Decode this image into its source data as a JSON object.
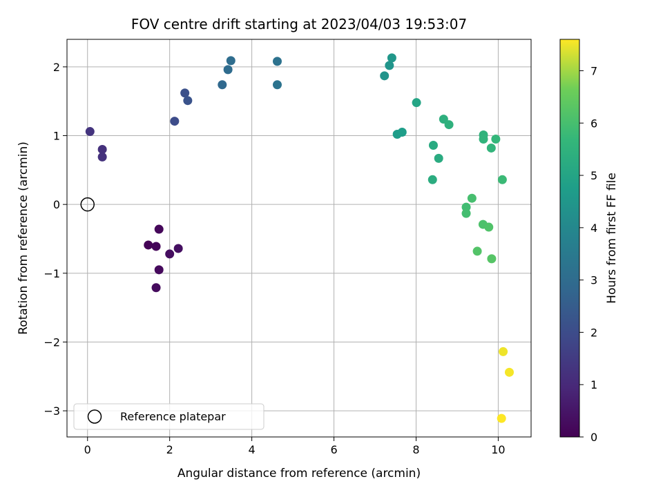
{
  "chart_data": {
    "type": "scatter",
    "title": "FOV centre drift starting at 2023/04/03 19:53:07",
    "xlabel": "Angular distance from reference (arcmin)",
    "ylabel": "Rotation from reference (arcmin)",
    "xlim": [
      -0.5,
      10.8
    ],
    "ylim": [
      -3.38,
      2.4
    ],
    "xticks": [
      0,
      2,
      4,
      6,
      8,
      10
    ],
    "xtick_labels": [
      "0",
      "2",
      "4",
      "6",
      "8",
      "10"
    ],
    "yticks": [
      -3,
      -2,
      -1,
      0,
      1,
      2
    ],
    "ytick_labels": [
      "−3",
      "−2",
      "−1",
      "0",
      "1",
      "2"
    ],
    "grid": true,
    "colormap": "viridis",
    "colorbar": {
      "label": "Hours from first FF file",
      "range": [
        0,
        7.6
      ],
      "ticks": [
        0,
        1,
        2,
        3,
        4,
        5,
        6,
        7
      ],
      "tick_labels": [
        "0",
        "1",
        "2",
        "3",
        "4",
        "5",
        "6",
        "7"
      ]
    },
    "legend": {
      "placement": "lower-left",
      "entries": [
        "Reference platepar"
      ]
    },
    "reference_point": {
      "x": 0,
      "y": 0,
      "label": "Reference platepar"
    },
    "points": [
      {
        "x": 1.48,
        "y": -0.59,
        "hours": 0.05
      },
      {
        "x": 1.67,
        "y": -0.61,
        "hours": 0.1
      },
      {
        "x": 1.74,
        "y": -0.36,
        "hours": 0.15
      },
      {
        "x": 1.74,
        "y": -0.95,
        "hours": 0.2
      },
      {
        "x": 1.67,
        "y": -1.21,
        "hours": 0.25
      },
      {
        "x": 2.0,
        "y": -0.72,
        "hours": 0.3
      },
      {
        "x": 2.21,
        "y": -0.64,
        "hours": 0.35
      },
      {
        "x": 0.36,
        "y": 0.8,
        "hours": 1.2
      },
      {
        "x": 0.36,
        "y": 0.69,
        "hours": 1.25
      },
      {
        "x": 0.06,
        "y": 1.06,
        "hours": 1.3
      },
      {
        "x": 2.12,
        "y": 1.21,
        "hours": 2.0
      },
      {
        "x": 2.37,
        "y": 1.62,
        "hours": 2.1
      },
      {
        "x": 2.44,
        "y": 1.51,
        "hours": 2.2
      },
      {
        "x": 3.28,
        "y": 1.74,
        "hours": 2.9
      },
      {
        "x": 3.42,
        "y": 1.96,
        "hours": 3.0
      },
      {
        "x": 3.49,
        "y": 2.09,
        "hours": 3.05
      },
      {
        "x": 4.62,
        "y": 2.08,
        "hours": 3.2
      },
      {
        "x": 4.62,
        "y": 1.74,
        "hours": 3.25
      },
      {
        "x": 7.23,
        "y": 1.87,
        "hours": 4.4
      },
      {
        "x": 7.35,
        "y": 2.02,
        "hours": 4.45
      },
      {
        "x": 7.41,
        "y": 2.13,
        "hours": 4.5
      },
      {
        "x": 7.54,
        "y": 1.02,
        "hours": 4.7
      },
      {
        "x": 7.66,
        "y": 1.05,
        "hours": 4.75
      },
      {
        "x": 8.01,
        "y": 1.48,
        "hours": 5.0
      },
      {
        "x": 8.42,
        "y": 0.86,
        "hours": 5.2
      },
      {
        "x": 8.55,
        "y": 0.67,
        "hours": 5.25
      },
      {
        "x": 8.4,
        "y": 0.36,
        "hours": 5.3
      },
      {
        "x": 8.67,
        "y": 1.24,
        "hours": 5.4
      },
      {
        "x": 8.8,
        "y": 1.16,
        "hours": 5.45
      },
      {
        "x": 9.64,
        "y": 1.01,
        "hours": 5.5
      },
      {
        "x": 9.64,
        "y": 0.95,
        "hours": 5.55
      },
      {
        "x": 9.83,
        "y": 0.82,
        "hours": 5.6
      },
      {
        "x": 9.94,
        "y": 0.95,
        "hours": 5.65
      },
      {
        "x": 10.1,
        "y": 0.36,
        "hours": 5.8
      },
      {
        "x": 9.22,
        "y": -0.04,
        "hours": 5.9
      },
      {
        "x": 9.22,
        "y": -0.13,
        "hours": 5.95
      },
      {
        "x": 9.36,
        "y": 0.09,
        "hours": 6.0
      },
      {
        "x": 9.63,
        "y": -0.29,
        "hours": 6.1
      },
      {
        "x": 9.77,
        "y": -0.33,
        "hours": 6.15
      },
      {
        "x": 9.49,
        "y": -0.68,
        "hours": 6.2
      },
      {
        "x": 9.84,
        "y": -0.79,
        "hours": 6.25
      },
      {
        "x": 10.12,
        "y": -2.14,
        "hours": 7.5
      },
      {
        "x": 10.27,
        "y": -2.44,
        "hours": 7.55
      },
      {
        "x": 10.08,
        "y": -3.11,
        "hours": 7.6
      }
    ]
  }
}
